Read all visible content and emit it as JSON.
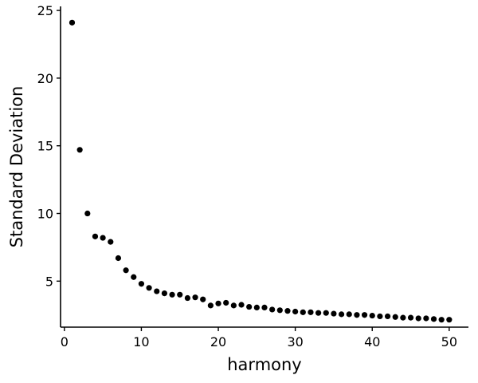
{
  "chart_data": {
    "type": "scatter",
    "title": "",
    "xlabel": "harmony",
    "ylabel": "Standard Deviation",
    "xlim": [
      -0.5,
      52.5
    ],
    "ylim": [
      1.6,
      25.3
    ],
    "xticks": [
      0,
      10,
      20,
      30,
      40,
      50
    ],
    "yticks": [
      5,
      10,
      15,
      20,
      25
    ],
    "grid": false,
    "legend": "none",
    "point_color": "#000000",
    "series": [
      {
        "x": [
          1,
          2,
          3,
          4,
          5,
          6,
          7,
          8,
          9,
          10,
          11,
          12,
          13,
          14,
          15,
          16,
          17,
          18,
          19,
          20,
          21,
          22,
          23,
          24,
          25,
          26,
          27,
          28,
          29,
          30,
          31,
          32,
          33,
          34,
          35,
          36,
          37,
          38,
          39,
          40,
          41,
          42,
          43,
          44,
          45,
          46,
          47,
          48,
          49,
          50
        ],
        "y": [
          24.1,
          14.7,
          10.0,
          8.3,
          8.2,
          7.9,
          6.7,
          5.8,
          5.3,
          4.8,
          4.5,
          4.25,
          4.1,
          4.0,
          4.0,
          3.75,
          3.8,
          3.65,
          3.2,
          3.35,
          3.4,
          3.2,
          3.25,
          3.1,
          3.05,
          3.05,
          2.9,
          2.85,
          2.8,
          2.75,
          2.7,
          2.7,
          2.65,
          2.65,
          2.6,
          2.55,
          2.55,
          2.5,
          2.5,
          2.45,
          2.4,
          2.4,
          2.35,
          2.3,
          2.3,
          2.25,
          2.25,
          2.2,
          2.15,
          2.15
        ]
      }
    ]
  }
}
